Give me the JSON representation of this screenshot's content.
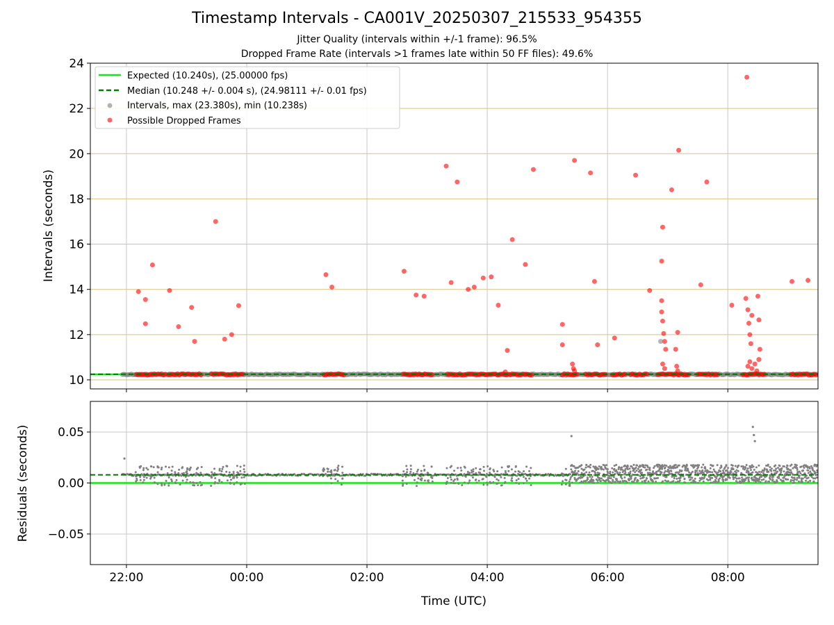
{
  "title": "Timestamp Intervals - CA001V_20250307_215533_954355",
  "subtitle_1": "Jitter Quality (intervals within +/-1 frame): 96.5%",
  "subtitle_2": "Dropped Frame Rate (intervals >1 frames late within 50 FF files): 49.6%",
  "colors": {
    "expected": "#18e218",
    "median": "#007a00",
    "intervals": "#808080",
    "dropped": "#ff0000",
    "ygrid_top": "#d9c27a",
    "grid": "#c8c8c8"
  },
  "chart_data": [
    {
      "type": "scatter",
      "panel": "top",
      "ylabel": "Intervals (seconds)",
      "ylim": [
        9.6,
        24
      ],
      "xlim": [
        "21:24",
        "09:30"
      ],
      "yticks": [
        10,
        12,
        14,
        16,
        18,
        20,
        22,
        24
      ],
      "grid": "on",
      "legend_position": "upper-left",
      "legend": [
        "Expected (10.240s), (25.00000 fps)",
        "Median (10.248 +/- 0.004 s), (24.98111 +/- 0.01 fps)",
        "Intervals, max (23.380s), min (10.238s)",
        "Possible Dropped Frames"
      ],
      "expected_value": 10.24,
      "median_value": 10.248,
      "intervals_span": [
        "21:56",
        "09:30"
      ],
      "dropped_frames": [
        [
          "22:12",
          13.9
        ],
        [
          "22:19",
          13.55
        ],
        [
          "22:19",
          12.48
        ],
        [
          "22:26",
          15.08
        ],
        [
          "22:43",
          13.95
        ],
        [
          "22:52",
          12.35
        ],
        [
          "23:05",
          13.2
        ],
        [
          "23:08",
          11.7
        ],
        [
          "23:29",
          17.0
        ],
        [
          "23:38",
          11.8
        ],
        [
          "23:45",
          12.0
        ],
        [
          "23:52",
          13.28
        ],
        [
          "01:19",
          14.65
        ],
        [
          "01:25",
          14.1
        ],
        [
          "02:37",
          14.8
        ],
        [
          "02:49",
          13.75
        ],
        [
          "02:57",
          13.7
        ],
        [
          "03:19",
          19.45
        ],
        [
          "03:24",
          14.3
        ],
        [
          "03:30",
          18.75
        ],
        [
          "03:41",
          14.0
        ],
        [
          "03:47",
          14.1
        ],
        [
          "03:56",
          14.5
        ],
        [
          "04:04",
          14.55
        ],
        [
          "04:11",
          13.3
        ],
        [
          "04:20",
          11.3
        ],
        [
          "04:25",
          16.2
        ],
        [
          "04:38",
          15.1
        ],
        [
          "04:46",
          19.3
        ],
        [
          "05:15",
          12.45
        ],
        [
          "05:15",
          11.55
        ],
        [
          "05:27",
          19.7
        ],
        [
          "05:43",
          19.15
        ],
        [
          "05:47",
          14.35
        ],
        [
          "05:50",
          11.55
        ],
        [
          "06:07",
          11.85
        ],
        [
          "06:28",
          19.05
        ],
        [
          "06:42",
          13.95
        ],
        [
          "06:54",
          15.25
        ],
        [
          "06:55",
          16.75
        ],
        [
          "06:54",
          13.5
        ],
        [
          "06:54",
          13.0
        ],
        [
          "06:55",
          12.6
        ],
        [
          "06:56",
          12.05
        ],
        [
          "06:57",
          11.7
        ],
        [
          "06:58",
          11.35
        ],
        [
          "07:04",
          18.4
        ],
        [
          "07:08",
          11.35
        ],
        [
          "07:10",
          12.1
        ],
        [
          "07:11",
          20.15
        ],
        [
          "07:33",
          14.2
        ],
        [
          "07:39",
          18.75
        ],
        [
          "08:04",
          13.3
        ],
        [
          "08:19",
          23.38
        ],
        [
          "08:18",
          13.6
        ],
        [
          "08:20",
          13.1
        ],
        [
          "08:21",
          12.5
        ],
        [
          "08:22",
          12.0
        ],
        [
          "08:23",
          11.6
        ],
        [
          "08:24",
          12.85
        ],
        [
          "08:30",
          13.7
        ],
        [
          "08:31",
          12.65
        ],
        [
          "08:32",
          11.35
        ],
        [
          "09:04",
          14.35
        ],
        [
          "09:20",
          14.4
        ]
      ],
      "dropped_clusters_near_10_24": [
        [
          "22:10",
          "22:40"
        ],
        [
          "22:42",
          "23:00"
        ],
        [
          "23:00",
          "23:15"
        ],
        [
          "23:25",
          "23:38"
        ],
        [
          "23:40",
          "23:58"
        ],
        [
          "01:17",
          "01:37"
        ],
        [
          "02:36",
          "03:06"
        ],
        [
          "03:20",
          "04:46"
        ],
        [
          "05:15",
          "05:30"
        ],
        [
          "05:38",
          "05:58"
        ],
        [
          "06:05",
          "06:18"
        ],
        [
          "06:23",
          "06:40"
        ],
        [
          "06:50",
          "07:22"
        ],
        [
          "07:30",
          "07:50"
        ],
        [
          "08:15",
          "08:38"
        ],
        [
          "09:03",
          "09:30"
        ]
      ]
    },
    {
      "type": "scatter",
      "panel": "bottom",
      "xlabel": "Time (UTC)",
      "ylabel": "Residuals (seconds)",
      "ylim": [
        -0.08,
        0.08
      ],
      "yticks": [
        -0.05,
        0.0,
        0.05
      ],
      "ytick_labels": [
        "−0.05",
        "0.00",
        "0.05"
      ],
      "xticks": [
        "22:00",
        "00:00",
        "02:00",
        "04:00",
        "06:00",
        "08:00"
      ],
      "grid": "on",
      "expected_residual": 0.0,
      "median_residual": 0.008,
      "outliers": [
        [
          "21:58",
          0.024
        ],
        [
          "05:24",
          0.046
        ],
        [
          "08:25",
          0.055
        ],
        [
          "08:26",
          0.047
        ],
        [
          "08:27",
          0.041
        ]
      ],
      "residual_regimes": [
        {
          "from": "21:56",
          "to": "05:23",
          "low": -0.003,
          "high": 0.017,
          "note": "sparse clusters around 0.008"
        },
        {
          "from": "05:23",
          "to": "09:30",
          "low": 0.0,
          "high": 0.018,
          "note": "dense band"
        }
      ]
    }
  ]
}
